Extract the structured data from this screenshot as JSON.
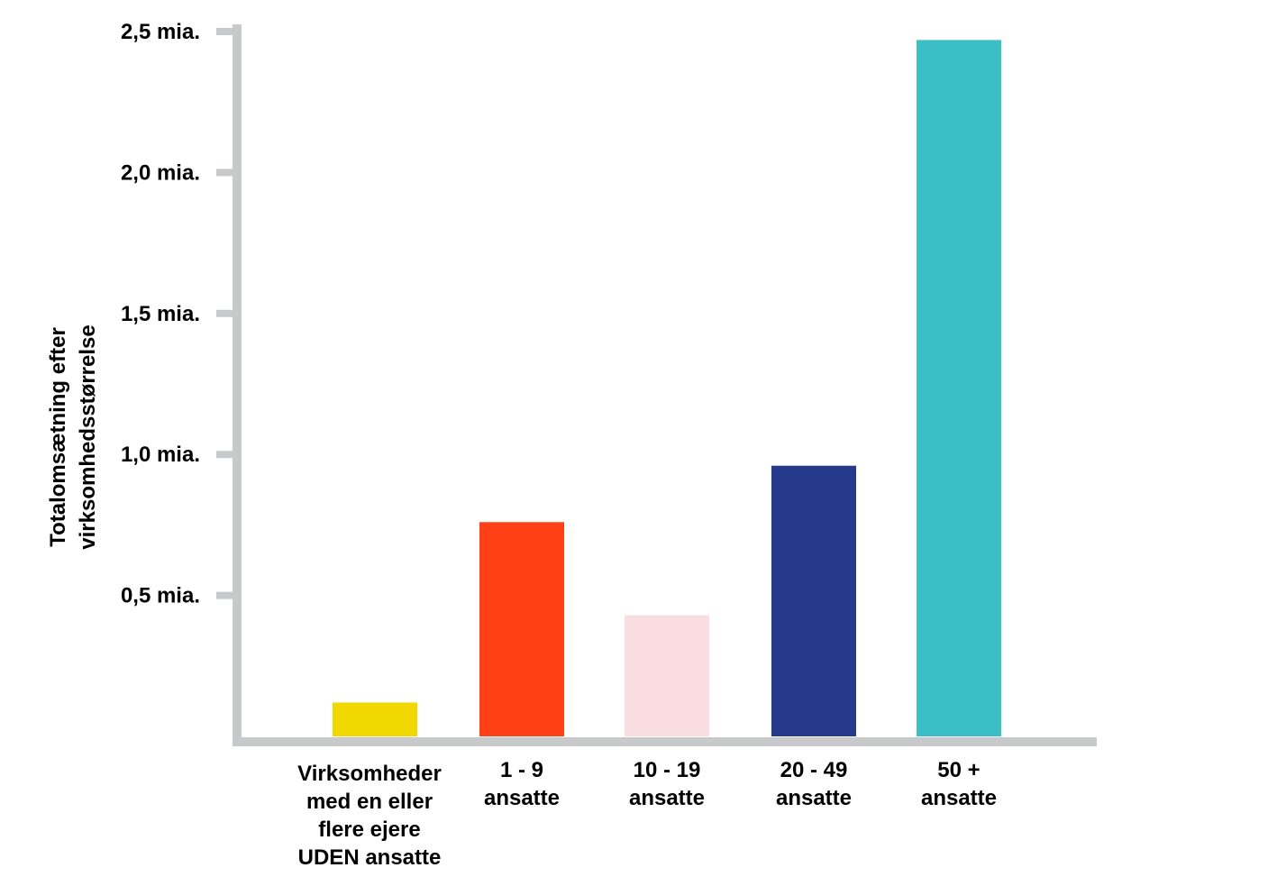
{
  "chart_data": {
    "type": "bar",
    "title": "",
    "xlabel": "",
    "ylabel_lines": [
      "Totalomsætning efter",
      "virksomhedsstørrelse"
    ],
    "ylim": [
      0,
      2.5
    ],
    "yticks": [
      {
        "value": 0.5,
        "label": "0,5 mia."
      },
      {
        "value": 1.0,
        "label": "1,0 mia."
      },
      {
        "value": 1.5,
        "label": "1,5 mia."
      },
      {
        "value": 2.0,
        "label": "2,0 mia."
      },
      {
        "value": 2.5,
        "label": "2,5 mia."
      }
    ],
    "categories": [
      {
        "lines": [
          "Virksomheder",
          "med en eller",
          "flere ejere",
          "UDEN ansatte"
        ],
        "value": 0.12,
        "color": "#F0D800"
      },
      {
        "lines": [
          "1 - 9",
          "ansatte"
        ],
        "value": 0.76,
        "color": "#FF4016"
      },
      {
        "lines": [
          "10 - 19",
          "ansatte"
        ],
        "value": 0.43,
        "color": "#F9DDE1"
      },
      {
        "lines": [
          "20 - 49",
          "ansatte"
        ],
        "value": 0.96,
        "color": "#253A8A"
      },
      {
        "lines": [
          "50 +",
          "ansatte"
        ],
        "value": 2.47,
        "color": "#3BBEC6"
      }
    ],
    "grid": false,
    "legend": "none",
    "colors": {
      "axis": "#C8C9CB",
      "text": "#000000"
    }
  }
}
